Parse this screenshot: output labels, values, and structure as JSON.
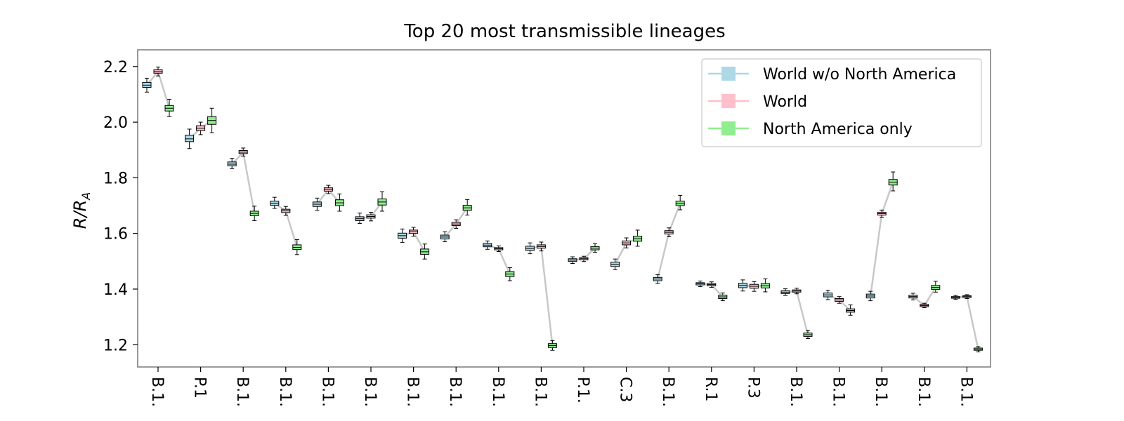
{
  "chart_data": {
    "type": "box",
    "title": "Top 20 most transmissible lineages",
    "ylabel_main": "R/R",
    "ylabel_sub": "A",
    "xlabel": "",
    "ylim": [
      1.12,
      2.26
    ],
    "yticks": [
      1.2,
      1.4,
      1.6,
      1.8,
      2.0,
      2.2
    ],
    "ytick_labels": [
      "1.2",
      "1.4",
      "1.6",
      "1.8",
      "2.0",
      "2.2"
    ],
    "categories": [
      "B.1.",
      "P.1",
      "B.1.",
      "B.1.",
      "B.1.",
      "B.1.",
      "B.1.",
      "B.1.",
      "B.1.",
      "B.1.",
      "P.1.",
      "C.3",
      "B.1.",
      "R.1",
      "P.3",
      "B.1.",
      "B.1.",
      "B.1.",
      "B.1.",
      "B.1."
    ],
    "legend_position": "upper right",
    "grid": false,
    "series": [
      {
        "name": "World w/o North America",
        "color": "#add8e6",
        "values": [
          {
            "med": 2.133,
            "q1": 2.125,
            "q3": 2.143,
            "lo": 2.108,
            "hi": 2.158
          },
          {
            "med": 1.94,
            "q1": 1.93,
            "q3": 1.953,
            "lo": 1.905,
            "hi": 1.975
          },
          {
            "med": 1.849,
            "q1": 1.843,
            "q3": 1.857,
            "lo": 1.833,
            "hi": 1.87
          },
          {
            "med": 1.708,
            "q1": 1.701,
            "q3": 1.716,
            "lo": 1.69,
            "hi": 1.73
          },
          {
            "med": 1.705,
            "q1": 1.697,
            "q3": 1.713,
            "lo": 1.683,
            "hi": 1.727
          },
          {
            "med": 1.653,
            "q1": 1.646,
            "q3": 1.66,
            "lo": 1.636,
            "hi": 1.673
          },
          {
            "med": 1.592,
            "q1": 1.583,
            "q3": 1.601,
            "lo": 1.568,
            "hi": 1.616
          },
          {
            "med": 1.587,
            "q1": 1.58,
            "q3": 1.594,
            "lo": 1.57,
            "hi": 1.606
          },
          {
            "med": 1.558,
            "q1": 1.552,
            "q3": 1.564,
            "lo": 1.543,
            "hi": 1.573
          },
          {
            "med": 1.546,
            "q1": 1.539,
            "q3": 1.554,
            "lo": 1.527,
            "hi": 1.566
          },
          {
            "med": 1.504,
            "q1": 1.499,
            "q3": 1.509,
            "lo": 1.492,
            "hi": 1.516
          },
          {
            "med": 1.489,
            "q1": 1.481,
            "q3": 1.497,
            "lo": 1.47,
            "hi": 1.508
          },
          {
            "med": 1.436,
            "q1": 1.43,
            "q3": 1.442,
            "lo": 1.42,
            "hi": 1.452
          },
          {
            "med": 1.419,
            "q1": 1.415,
            "q3": 1.423,
            "lo": 1.409,
            "hi": 1.429
          },
          {
            "med": 1.413,
            "q1": 1.405,
            "q3": 1.421,
            "lo": 1.393,
            "hi": 1.433
          },
          {
            "med": 1.389,
            "q1": 1.384,
            "q3": 1.394,
            "lo": 1.377,
            "hi": 1.401
          },
          {
            "med": 1.379,
            "q1": 1.372,
            "q3": 1.386,
            "lo": 1.362,
            "hi": 1.396
          },
          {
            "med": 1.375,
            "q1": 1.368,
            "q3": 1.382,
            "lo": 1.358,
            "hi": 1.392
          },
          {
            "med": 1.373,
            "q1": 1.368,
            "q3": 1.378,
            "lo": 1.361,
            "hi": 1.385
          },
          {
            "med": 1.37,
            "q1": 1.367,
            "q3": 1.373,
            "lo": 1.363,
            "hi": 1.377
          }
        ]
      },
      {
        "name": "World",
        "color": "#ffc0cb",
        "values": [
          {
            "med": 2.182,
            "q1": 2.176,
            "q3": 2.188,
            "lo": 2.166,
            "hi": 2.198
          },
          {
            "med": 1.978,
            "q1": 1.97,
            "q3": 1.987,
            "lo": 1.955,
            "hi": 2.0
          },
          {
            "med": 1.892,
            "q1": 1.887,
            "q3": 1.898,
            "lo": 1.878,
            "hi": 1.907
          },
          {
            "med": 1.681,
            "q1": 1.675,
            "q3": 1.687,
            "lo": 1.665,
            "hi": 1.697
          },
          {
            "med": 1.758,
            "q1": 1.752,
            "q3": 1.764,
            "lo": 1.743,
            "hi": 1.773
          },
          {
            "med": 1.661,
            "q1": 1.655,
            "q3": 1.667,
            "lo": 1.645,
            "hi": 1.676
          },
          {
            "med": 1.606,
            "q1": 1.6,
            "q3": 1.612,
            "lo": 1.59,
            "hi": 1.622
          },
          {
            "med": 1.634,
            "q1": 1.628,
            "q3": 1.64,
            "lo": 1.618,
            "hi": 1.649
          },
          {
            "med": 1.545,
            "q1": 1.541,
            "q3": 1.549,
            "lo": 1.535,
            "hi": 1.555
          },
          {
            "med": 1.553,
            "q1": 1.547,
            "q3": 1.559,
            "lo": 1.537,
            "hi": 1.569
          },
          {
            "med": 1.509,
            "q1": 1.505,
            "q3": 1.513,
            "lo": 1.499,
            "hi": 1.518
          },
          {
            "med": 1.566,
            "q1": 1.559,
            "q3": 1.573,
            "lo": 1.548,
            "hi": 1.584
          },
          {
            "med": 1.604,
            "q1": 1.598,
            "q3": 1.61,
            "lo": 1.588,
            "hi": 1.62
          },
          {
            "med": 1.416,
            "q1": 1.412,
            "q3": 1.42,
            "lo": 1.406,
            "hi": 1.426
          },
          {
            "med": 1.41,
            "q1": 1.403,
            "q3": 1.417,
            "lo": 1.392,
            "hi": 1.427
          },
          {
            "med": 1.393,
            "q1": 1.389,
            "q3": 1.397,
            "lo": 1.383,
            "hi": 1.403
          },
          {
            "med": 1.361,
            "q1": 1.356,
            "q3": 1.366,
            "lo": 1.349,
            "hi": 1.373
          },
          {
            "med": 1.671,
            "q1": 1.666,
            "q3": 1.676,
            "lo": 1.658,
            "hi": 1.684
          },
          {
            "med": 1.341,
            "q1": 1.337,
            "q3": 1.345,
            "lo": 1.333,
            "hi": 1.349
          },
          {
            "med": 1.373,
            "q1": 1.37,
            "q3": 1.376,
            "lo": 1.366,
            "hi": 1.38
          }
        ]
      },
      {
        "name": "North America only",
        "color": "#90ee90",
        "values": [
          {
            "med": 2.05,
            "q1": 2.04,
            "q3": 2.06,
            "lo": 2.02,
            "hi": 2.082
          },
          {
            "med": 2.006,
            "q1": 1.992,
            "q3": 2.02,
            "lo": 1.962,
            "hi": 2.05
          },
          {
            "med": 1.672,
            "q1": 1.664,
            "q3": 1.68,
            "lo": 1.646,
            "hi": 1.698
          },
          {
            "med": 1.55,
            "q1": 1.542,
            "q3": 1.559,
            "lo": 1.524,
            "hi": 1.578
          },
          {
            "med": 1.71,
            "q1": 1.7,
            "q3": 1.721,
            "lo": 1.68,
            "hi": 1.742
          },
          {
            "med": 1.713,
            "q1": 1.702,
            "q3": 1.724,
            "lo": 1.68,
            "hi": 1.75
          },
          {
            "med": 1.534,
            "q1": 1.525,
            "q3": 1.544,
            "lo": 1.508,
            "hi": 1.562
          },
          {
            "med": 1.692,
            "q1": 1.683,
            "q3": 1.701,
            "lo": 1.666,
            "hi": 1.722
          },
          {
            "med": 1.454,
            "q1": 1.445,
            "q3": 1.463,
            "lo": 1.43,
            "hi": 1.477
          },
          {
            "med": 1.197,
            "q1": 1.19,
            "q3": 1.204,
            "lo": 1.18,
            "hi": 1.215
          },
          {
            "med": 1.547,
            "q1": 1.541,
            "q3": 1.553,
            "lo": 1.532,
            "hi": 1.563
          },
          {
            "med": 1.581,
            "q1": 1.572,
            "q3": 1.59,
            "lo": 1.554,
            "hi": 1.612
          },
          {
            "med": 1.708,
            "q1": 1.7,
            "q3": 1.716,
            "lo": 1.685,
            "hi": 1.737
          },
          {
            "med": 1.372,
            "q1": 1.366,
            "q3": 1.378,
            "lo": 1.358,
            "hi": 1.386
          },
          {
            "med": 1.412,
            "q1": 1.404,
            "q3": 1.42,
            "lo": 1.39,
            "hi": 1.437
          },
          {
            "med": 1.236,
            "q1": 1.23,
            "q3": 1.242,
            "lo": 1.222,
            "hi": 1.252
          },
          {
            "med": 1.323,
            "q1": 1.317,
            "q3": 1.329,
            "lo": 1.306,
            "hi": 1.343
          },
          {
            "med": 1.784,
            "q1": 1.774,
            "q3": 1.794,
            "lo": 1.753,
            "hi": 1.821
          },
          {
            "med": 1.406,
            "q1": 1.399,
            "q3": 1.413,
            "lo": 1.389,
            "hi": 1.428
          },
          {
            "med": 1.184,
            "q1": 1.18,
            "q3": 1.188,
            "lo": 1.174,
            "hi": 1.193
          }
        ]
      }
    ]
  }
}
